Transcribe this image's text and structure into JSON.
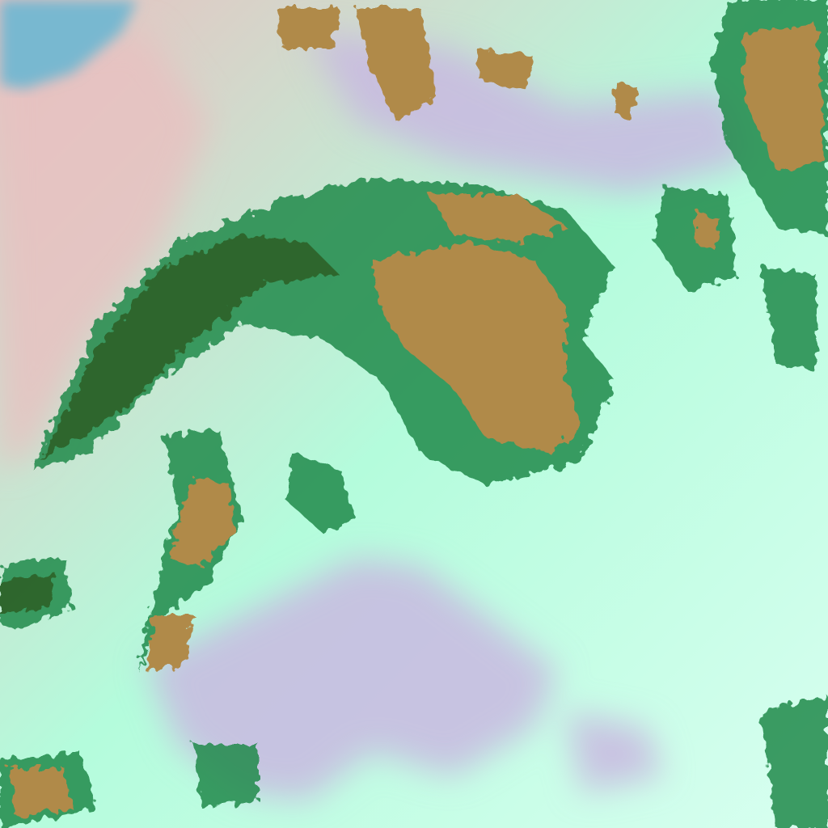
{
  "image": {
    "kind": "false-color satellite imagery",
    "colors": {
      "cloud": "#b4fcdc",
      "cloud_bright": "#d8fff0",
      "land": "#b08a4a",
      "vegetation_edge": "#1f8a4a",
      "clear_sky": "#c8b8e0",
      "desert_haze": "#e8c0c0",
      "water": "#78b8d0"
    }
  }
}
